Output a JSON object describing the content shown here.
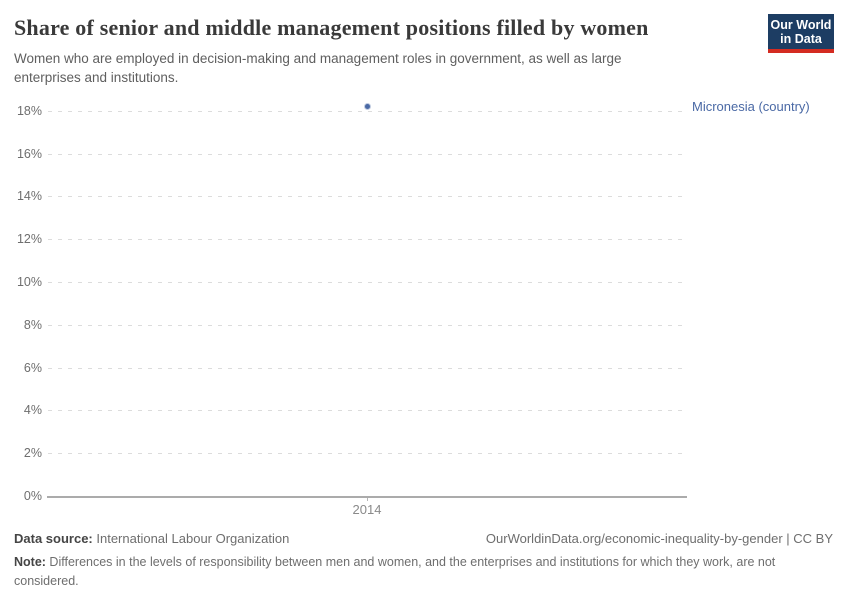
{
  "header": {
    "title": "Share of senior and middle management positions filled by women",
    "subtitle": "Women who are employed in decision-making and management roles in government, as well as large enterprises and institutions.",
    "logo": {
      "line1": "Our World",
      "line2": "in Data"
    }
  },
  "chart_data": {
    "type": "scatter",
    "title": "Share of senior and middle management positions filled by women",
    "series": [
      {
        "name": "Micronesia (country)",
        "x": [
          2014
        ],
        "y": [
          18.2
        ]
      }
    ],
    "xticks": [
      "2014"
    ],
    "yticks": [
      0,
      2,
      4,
      6,
      8,
      10,
      12,
      14,
      16,
      18
    ],
    "ylim": [
      0,
      18.5
    ],
    "xlabel": "",
    "ylabel": "",
    "grid": "horizontal-dashed",
    "legend_position": "right-of-point",
    "point_color": "#4a69a5",
    "ytick_suffix": "%"
  },
  "footer": {
    "datasource_label": "Data source:",
    "datasource_value": " International Labour Organization",
    "attribution": "OurWorldinData.org/economic-inequality-by-gender | CC BY",
    "note_label": "Note:",
    "note_value": " Differences in the levels of responsibility between men and women, and the enterprises and institutions for which they work, are not considered."
  },
  "colors": {
    "series_blue": "#4a69a5",
    "logo_navy": "#1d3d63",
    "logo_red": "#d42b21",
    "grid_gray": "#dcdcdc",
    "axis_gray": "#ababab",
    "title_gray": "#3a3a3a",
    "text_gray": "#6e6e6e"
  }
}
